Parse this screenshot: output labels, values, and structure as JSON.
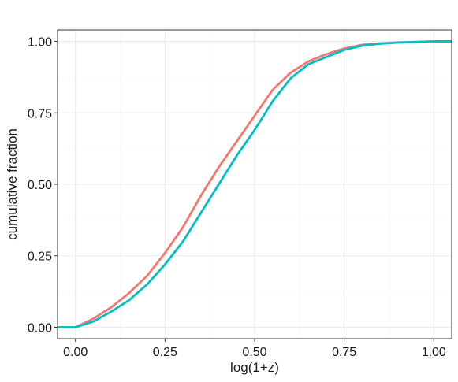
{
  "chart_data": {
    "type": "line",
    "xlabel": "log(1+z)",
    "ylabel": "cumulative fraction",
    "xlim": [
      -0.05,
      1.05
    ],
    "ylim": [
      -0.04,
      1.04
    ],
    "x_ticks": [
      0.0,
      0.25,
      0.5,
      0.75,
      1.0
    ],
    "x_tick_labels": [
      "0.00",
      "0.25",
      "0.50",
      "0.75",
      "1.00"
    ],
    "y_ticks": [
      0.0,
      0.25,
      0.5,
      0.75,
      1.0
    ],
    "y_tick_labels": [
      "0.00",
      "0.25",
      "0.50",
      "0.75",
      "1.00"
    ],
    "grid": true,
    "legend": "none",
    "series": [
      {
        "color": "#F8766D",
        "x": [
          -0.05,
          0.0,
          0.05,
          0.1,
          0.15,
          0.2,
          0.25,
          0.3,
          0.35,
          0.4,
          0.45,
          0.5,
          0.55,
          0.6,
          0.65,
          0.7,
          0.75,
          0.8,
          0.85,
          0.9,
          0.95,
          1.0,
          1.05
        ],
        "y": [
          0.0,
          0.0,
          0.03,
          0.07,
          0.12,
          0.18,
          0.26,
          0.35,
          0.46,
          0.56,
          0.65,
          0.74,
          0.83,
          0.89,
          0.93,
          0.955,
          0.975,
          0.988,
          0.993,
          0.996,
          0.998,
          1.0,
          1.0
        ]
      },
      {
        "color": "#00BFC4",
        "x": [
          -0.05,
          0.0,
          0.05,
          0.1,
          0.15,
          0.2,
          0.25,
          0.3,
          0.35,
          0.4,
          0.45,
          0.5,
          0.55,
          0.6,
          0.65,
          0.7,
          0.75,
          0.8,
          0.85,
          0.9,
          0.95,
          1.0,
          1.05
        ],
        "y": [
          0.0,
          0.0,
          0.02,
          0.055,
          0.095,
          0.15,
          0.22,
          0.3,
          0.4,
          0.5,
          0.6,
          0.69,
          0.79,
          0.87,
          0.92,
          0.945,
          0.97,
          0.985,
          0.992,
          0.996,
          0.998,
          1.0,
          1.0
        ]
      }
    ]
  }
}
